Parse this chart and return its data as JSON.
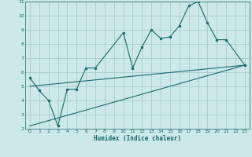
{
  "xlabel": "Humidex (Indice chaleur)",
  "ylabel": "",
  "background_color": "#cce8e8",
  "grid_color": "#aacccc",
  "line_color": "#1a6b6b",
  "xlim": [
    -0.5,
    23.5
  ],
  "ylim": [
    2,
    11
  ],
  "xticks": [
    0,
    1,
    2,
    3,
    4,
    5,
    6,
    7,
    8,
    9,
    10,
    11,
    12,
    13,
    14,
    15,
    16,
    17,
    18,
    19,
    20,
    21,
    22,
    23
  ],
  "yticks": [
    2,
    3,
    4,
    5,
    6,
    7,
    8,
    9,
    10,
    11
  ],
  "line1_x": [
    0,
    1,
    2,
    3,
    4,
    5,
    6,
    7,
    10,
    11,
    12,
    13,
    14,
    15,
    16,
    17,
    18,
    19,
    20,
    21,
    23
  ],
  "line1_y": [
    5.6,
    4.7,
    4.0,
    2.2,
    4.8,
    4.8,
    6.3,
    6.3,
    8.8,
    6.3,
    7.8,
    9.0,
    8.4,
    8.5,
    9.3,
    10.7,
    11.0,
    9.5,
    8.3,
    8.3,
    6.5
  ],
  "line2_x": [
    0,
    23
  ],
  "line2_y": [
    5.0,
    6.5
  ],
  "line3_x": [
    0,
    23
  ],
  "line3_y": [
    2.2,
    6.5
  ],
  "figsize": [
    3.2,
    2.0
  ],
  "dpi": 100
}
